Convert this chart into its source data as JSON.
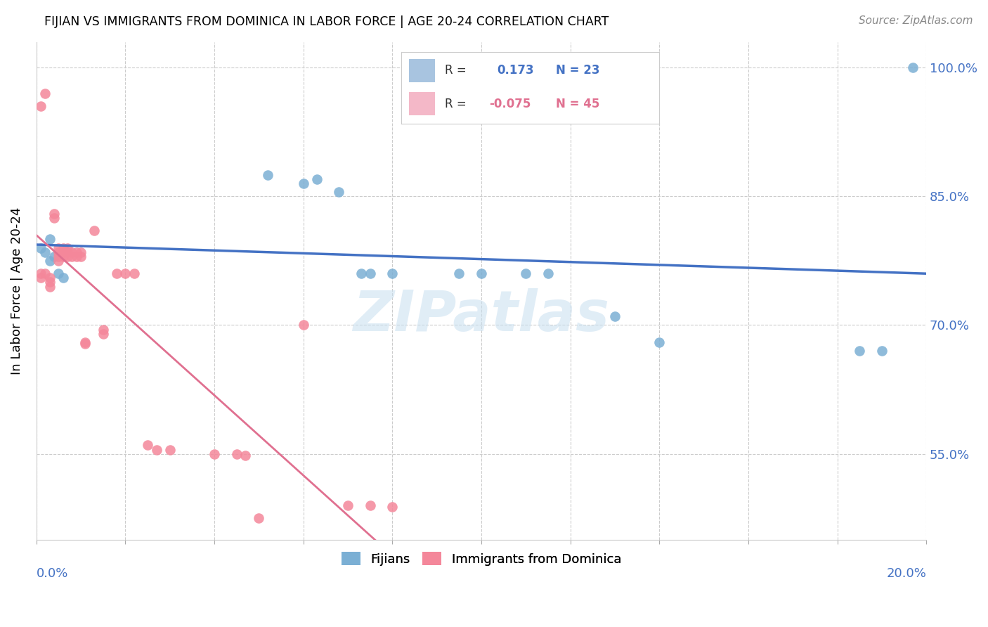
{
  "title": "FIJIAN VS IMMIGRANTS FROM DOMINICA IN LABOR FORCE | AGE 20-24 CORRELATION CHART",
  "source": "Source: ZipAtlas.com",
  "ylabel": "In Labor Force | Age 20-24",
  "ytick_labels": [
    "55.0%",
    "70.0%",
    "85.0%",
    "100.0%"
  ],
  "ytick_values": [
    0.55,
    0.7,
    0.85,
    1.0
  ],
  "blue_color": "#7bafd4",
  "pink_color": "#f4879a",
  "blue_line_color": "#4472c4",
  "pink_line_color": "#e07090",
  "watermark": "ZIPatlas",
  "fijians_scatter_x": [
    0.001,
    0.002,
    0.003,
    0.003,
    0.004,
    0.005,
    0.006,
    0.052,
    0.06,
    0.063,
    0.068,
    0.073,
    0.075,
    0.08,
    0.095,
    0.1,
    0.11,
    0.115,
    0.13,
    0.14,
    0.185,
    0.19,
    0.197
  ],
  "fijians_scatter_y": [
    0.79,
    0.785,
    0.775,
    0.8,
    0.78,
    0.76,
    0.755,
    0.875,
    0.865,
    0.87,
    0.855,
    0.76,
    0.76,
    0.76,
    0.76,
    0.76,
    0.76,
    0.76,
    0.71,
    0.68,
    0.67,
    0.67,
    1.0
  ],
  "dominica_scatter_x": [
    0.001,
    0.001,
    0.001,
    0.002,
    0.002,
    0.003,
    0.003,
    0.003,
    0.004,
    0.004,
    0.005,
    0.005,
    0.005,
    0.005,
    0.006,
    0.006,
    0.006,
    0.007,
    0.007,
    0.007,
    0.008,
    0.008,
    0.009,
    0.009,
    0.01,
    0.01,
    0.011,
    0.011,
    0.013,
    0.015,
    0.015,
    0.018,
    0.02,
    0.022,
    0.025,
    0.027,
    0.03,
    0.04,
    0.045,
    0.047,
    0.05,
    0.06,
    0.07,
    0.075,
    0.08
  ],
  "dominica_scatter_y": [
    0.76,
    0.755,
    0.955,
    0.97,
    0.76,
    0.755,
    0.75,
    0.745,
    0.83,
    0.825,
    0.79,
    0.785,
    0.78,
    0.775,
    0.79,
    0.785,
    0.78,
    0.79,
    0.785,
    0.78,
    0.785,
    0.78,
    0.785,
    0.78,
    0.785,
    0.78,
    0.68,
    0.678,
    0.81,
    0.695,
    0.69,
    0.76,
    0.76,
    0.76,
    0.56,
    0.555,
    0.555,
    0.55,
    0.55,
    0.548,
    0.475,
    0.7,
    0.49,
    0.49,
    0.488
  ],
  "xlim": [
    0.0,
    0.2
  ],
  "ylim": [
    0.45,
    1.03
  ],
  "blue_R": "0.173",
  "blue_N": "23",
  "pink_R": "-0.075",
  "pink_N": "45",
  "legend_blue_color": "#a8c4e0",
  "legend_pink_color": "#f4b8c8"
}
